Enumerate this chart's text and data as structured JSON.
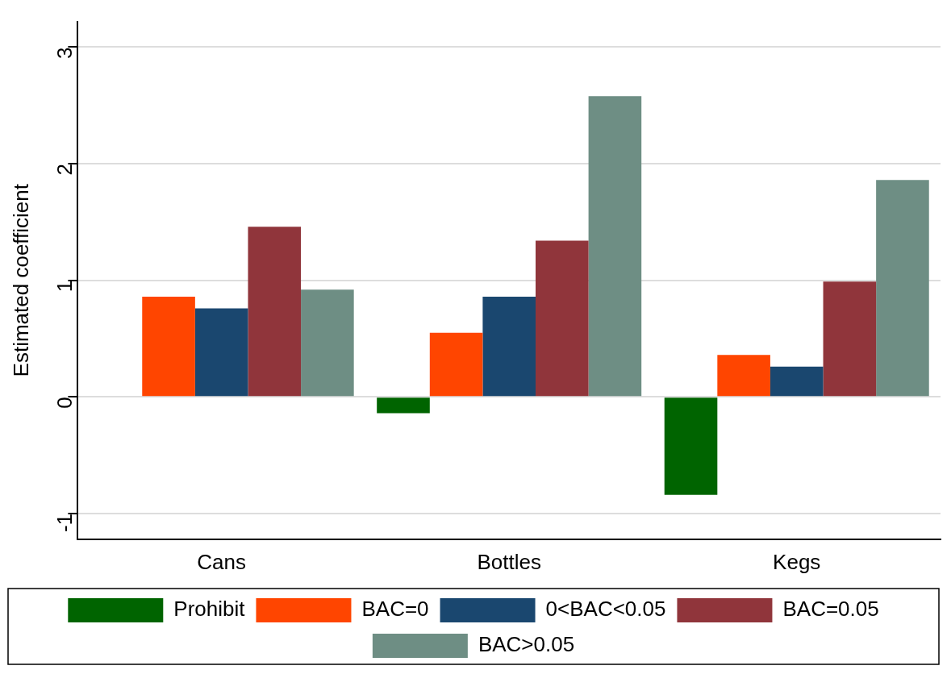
{
  "chart_data": {
    "type": "bar",
    "ylabel": "Estimated coefficient",
    "categories": [
      "Cans",
      "Bottles",
      "Kegs"
    ],
    "series": [
      {
        "name": "Prohibit",
        "color": "#006400",
        "values": [
          null,
          -0.14,
          -0.84
        ]
      },
      {
        "name": "BAC=0",
        "color": "#ff4500",
        "values": [
          0.86,
          0.55,
          0.36
        ]
      },
      {
        "name": "0<BAC<0.05",
        "color": "#1a476f",
        "values": [
          0.76,
          0.86,
          0.26
        ]
      },
      {
        "name": "BAC=0.05",
        "color": "#90353b",
        "values": [
          1.46,
          1.34,
          0.99
        ]
      },
      {
        "name": "BAC>0.05",
        "color": "#6e8e84",
        "values": [
          0.92,
          2.58,
          1.86
        ]
      }
    ],
    "ylim": [
      -1.22,
      3.22
    ],
    "yticks": [
      -1,
      0,
      1,
      2,
      3
    ],
    "grid": "y",
    "legend": "bottom"
  }
}
